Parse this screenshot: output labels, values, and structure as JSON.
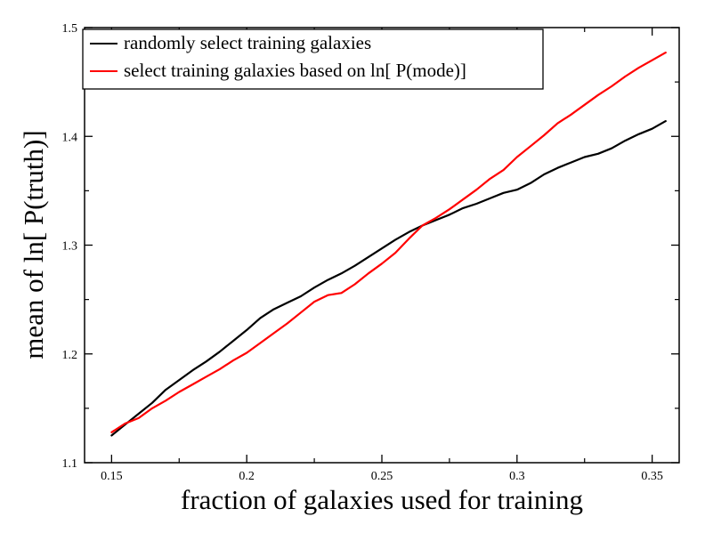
{
  "chart_data": {
    "type": "line",
    "title": "",
    "xlabel": "fraction of galaxies used for training",
    "ylabel": "mean of ln[ P(truth)]",
    "xlim": [
      0.14,
      0.36
    ],
    "ylim": [
      1.1,
      1.5
    ],
    "x_ticks": [
      0.15,
      0.2,
      0.25,
      0.3,
      0.35
    ],
    "x_tick_labels": [
      "0.15",
      "0.2",
      "0.25",
      "0.3",
      "0.35"
    ],
    "y_ticks": [
      1.1,
      1.2,
      1.3,
      1.4,
      1.5
    ],
    "y_tick_labels": [
      "1.1",
      "1.2",
      "1.3",
      "1.4",
      "1.5"
    ],
    "grid": false,
    "legend_position": "top-left",
    "series": [
      {
        "name": "randomly select training galaxies",
        "color": "#000000",
        "x": [
          0.15,
          0.155,
          0.16,
          0.165,
          0.17,
          0.175,
          0.18,
          0.185,
          0.19,
          0.195,
          0.2,
          0.205,
          0.21,
          0.215,
          0.22,
          0.225,
          0.23,
          0.235,
          0.24,
          0.245,
          0.25,
          0.255,
          0.26,
          0.265,
          0.27,
          0.275,
          0.28,
          0.285,
          0.29,
          0.295,
          0.3,
          0.305,
          0.31,
          0.315,
          0.32,
          0.325,
          0.33,
          0.335,
          0.34,
          0.345,
          0.35,
          0.355
        ],
        "y": [
          1.125,
          1.135,
          1.145,
          1.155,
          1.167,
          1.176,
          1.185,
          1.193,
          1.202,
          1.212,
          1.222,
          1.233,
          1.241,
          1.247,
          1.253,
          1.261,
          1.268,
          1.274,
          1.281,
          1.289,
          1.297,
          1.305,
          1.312,
          1.318,
          1.323,
          1.328,
          1.334,
          1.338,
          1.343,
          1.348,
          1.351,
          1.357,
          1.365,
          1.371,
          1.376,
          1.381,
          1.384,
          1.389,
          1.396,
          1.402,
          1.407,
          1.414
        ]
      },
      {
        "name": "select training galaxies based on ln[ P(mode)]",
        "color": "#ff0000",
        "x": [
          0.15,
          0.155,
          0.16,
          0.165,
          0.17,
          0.175,
          0.18,
          0.185,
          0.19,
          0.195,
          0.2,
          0.205,
          0.21,
          0.215,
          0.22,
          0.225,
          0.23,
          0.235,
          0.24,
          0.245,
          0.25,
          0.255,
          0.26,
          0.265,
          0.27,
          0.275,
          0.28,
          0.285,
          0.29,
          0.295,
          0.3,
          0.305,
          0.31,
          0.315,
          0.32,
          0.325,
          0.33,
          0.335,
          0.34,
          0.345,
          0.35,
          0.355
        ],
        "y": [
          1.128,
          1.136,
          1.141,
          1.15,
          1.157,
          1.165,
          1.172,
          1.179,
          1.186,
          1.194,
          1.201,
          1.21,
          1.219,
          1.228,
          1.238,
          1.248,
          1.254,
          1.256,
          1.264,
          1.274,
          1.283,
          1.293,
          1.306,
          1.318,
          1.325,
          1.333,
          1.342,
          1.351,
          1.361,
          1.369,
          1.381,
          1.391,
          1.401,
          1.412,
          1.42,
          1.429,
          1.438,
          1.446,
          1.455,
          1.463,
          1.47,
          1.477
        ]
      }
    ]
  }
}
